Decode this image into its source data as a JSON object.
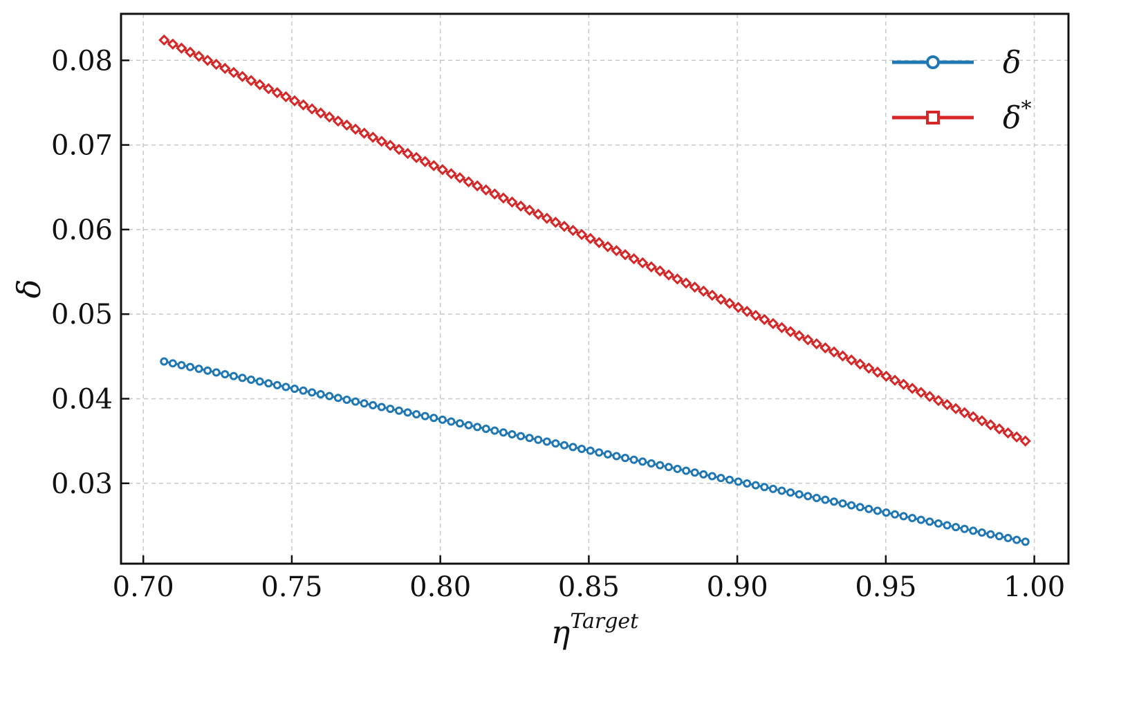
{
  "chart_data": {
    "type": "line",
    "xlabel": "η",
    "xlabel_superscript": "Target",
    "ylabel": "δ",
    "xlim": [
      0.6925,
      1.0115
    ],
    "ylim": [
      0.0205,
      0.0855
    ],
    "xticks": [
      "0.70",
      "0.75",
      "0.80",
      "0.85",
      "0.90",
      "0.95",
      "1.00"
    ],
    "yticks": [
      "0.03",
      "0.04",
      "0.05",
      "0.06",
      "0.07",
      "0.08"
    ],
    "grid": true,
    "legend_position": "top-right",
    "x_range": {
      "start": 0.707,
      "end": 0.997,
      "count": 100
    },
    "series": [
      {
        "name": "δ",
        "color": "#1f77b4",
        "marker": "circle",
        "legend_marker": "circle",
        "y_start": 0.0444,
        "y_end": 0.0231
      },
      {
        "name": "δ",
        "name_superscript": "*",
        "color": "#d62728",
        "marker": "diamond",
        "legend_marker": "square",
        "y_start": 0.0824,
        "y_end": 0.035
      }
    ]
  }
}
